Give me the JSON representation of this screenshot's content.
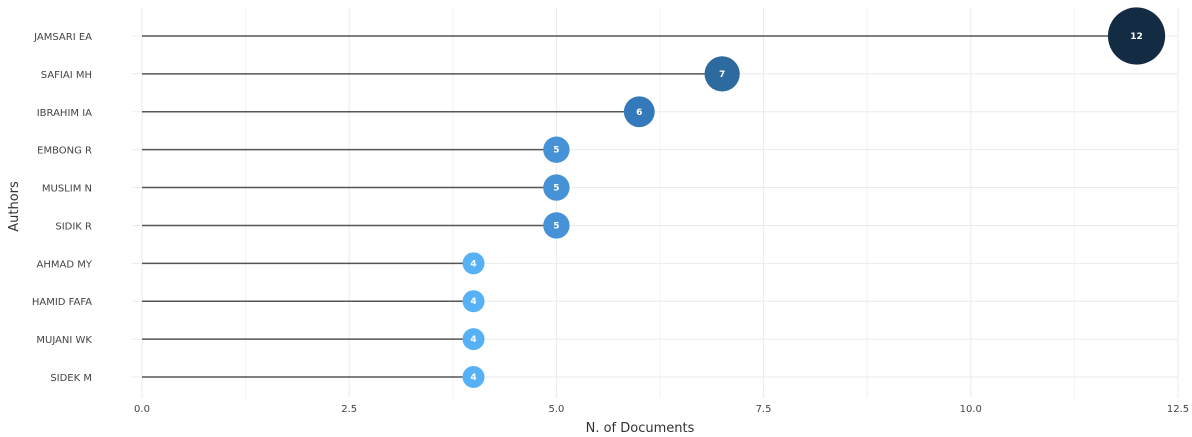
{
  "chart_data": {
    "type": "lollipop",
    "xlabel": "N. of Documents",
    "ylabel": "Authors",
    "xlim": [
      0,
      12.5
    ],
    "xticks": [
      "0.0",
      "2.5",
      "5.0",
      "7.5",
      "10.0",
      "12.5"
    ],
    "grid": true,
    "categories": [
      "JAMSARI EA",
      "SAFIAI MH",
      "IBRAHIM IA",
      "EMBONG R",
      "MUSLIM N",
      "SIDIK R",
      "AHMAD MY",
      "HAMID FAFA",
      "MUJANI WK",
      "SIDEK M"
    ],
    "values": [
      12,
      7,
      6,
      5,
      5,
      5,
      4,
      4,
      4,
      4
    ],
    "point_labels": [
      "12",
      "7",
      "6",
      "5",
      "5",
      "5",
      "4",
      "4",
      "4",
      "4"
    ],
    "colors": {
      "12": "#132b43",
      "7": "#2c6aa0",
      "6": "#347abb",
      "5": "#4592d6",
      "4": "#56b1f7"
    }
  }
}
